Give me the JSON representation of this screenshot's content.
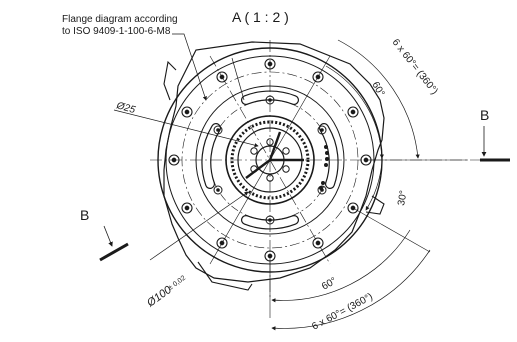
{
  "drawing": {
    "view_title": "A ( 1 : 2 )",
    "flange_note_line1": "Flange diagram according",
    "flange_note_line2": "to ISO 9409-1-100-6-M8",
    "diameter_small": "Ø25",
    "diameter_large": "Ø100",
    "tolerance": "± 0,02",
    "angle_upper_total": "6 x 60°= (360°)",
    "angle_upper_single": "60°",
    "angle_side": "30°",
    "angle_lower_single": "60°",
    "angle_lower_total": "6 x 60°= (360°)",
    "section_marker_right": "B",
    "section_marker_left": "B"
  },
  "colors": {
    "line": "#1a1a1a",
    "accent_blue": "#2c3e8f",
    "background": "#ffffff"
  }
}
